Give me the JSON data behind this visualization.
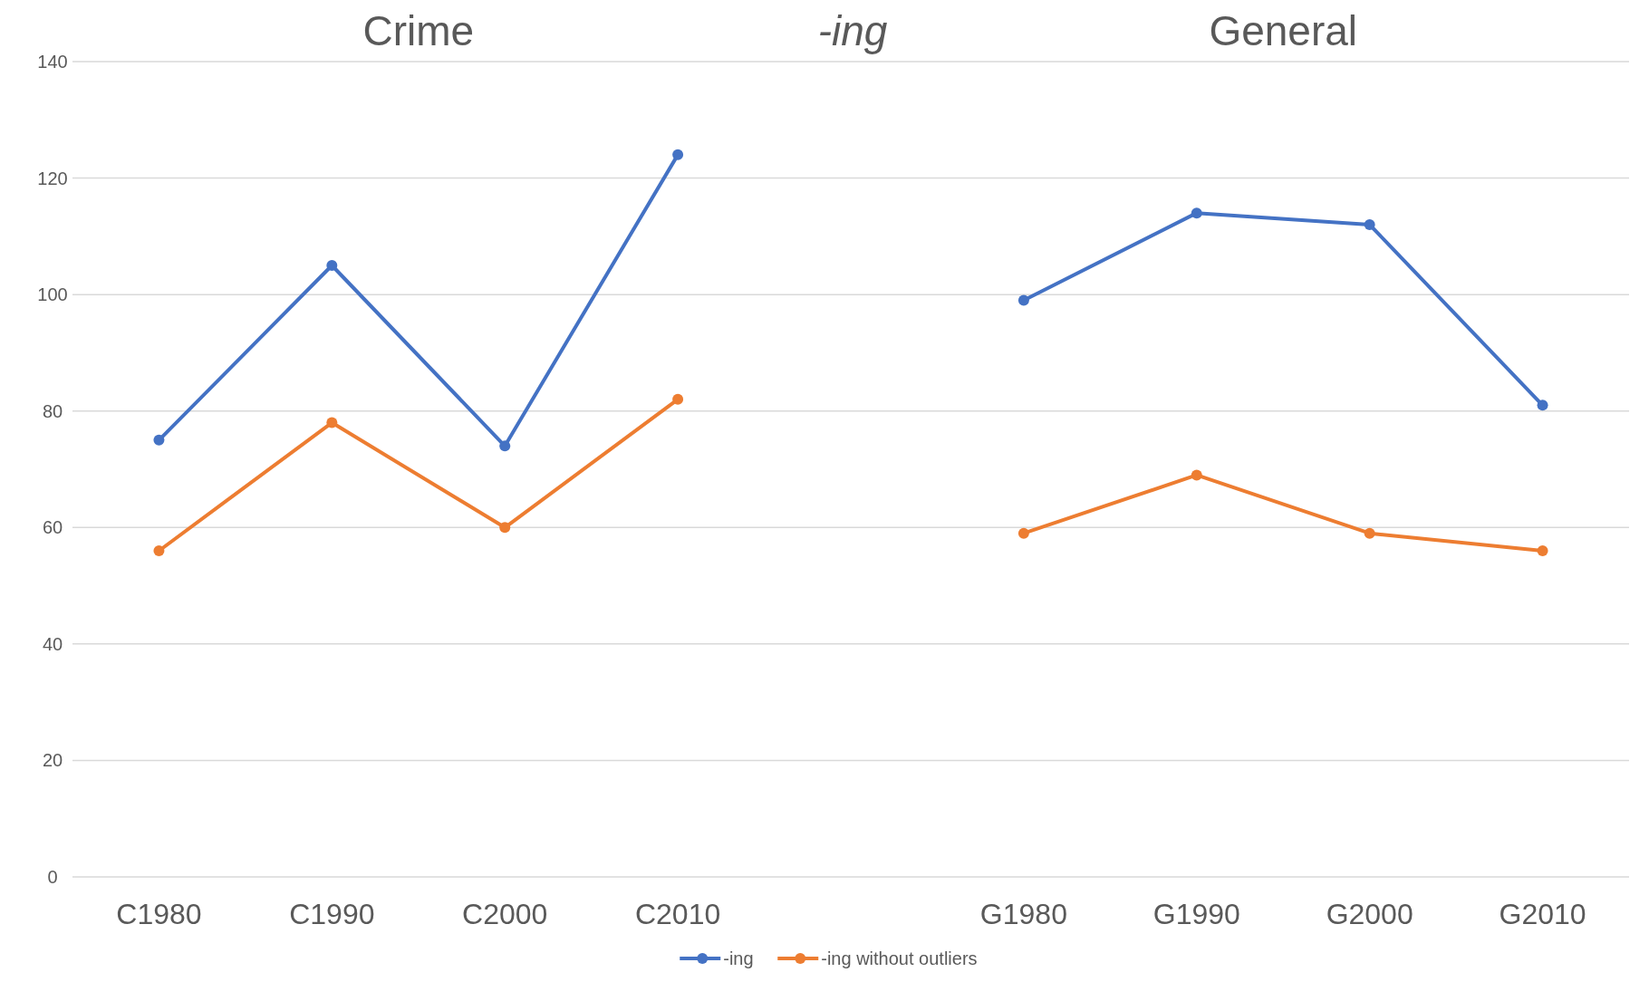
{
  "chart_data": {
    "type": "line",
    "title": "-ing",
    "annotations": [
      "Crime",
      "General"
    ],
    "categories": [
      "C1980",
      "C1990",
      "C2000",
      "C2010",
      null,
      "G1980",
      "G1990",
      "G2000",
      "G2010"
    ],
    "series": [
      {
        "name": "-ing",
        "color": "#4472c4",
        "values": [
          75,
          105,
          74,
          124,
          null,
          99,
          114,
          112,
          81
        ]
      },
      {
        "name": "-ing without outliers",
        "color": "#ed7d31",
        "values": [
          56,
          78,
          60,
          82,
          null,
          59,
          69,
          59,
          56
        ]
      }
    ],
    "ylim": [
      0,
      140
    ],
    "yticks": [
      0,
      20,
      40,
      60,
      80,
      100,
      120,
      140
    ],
    "grid": "y",
    "legend": "bottom",
    "marker": "circle",
    "line_style": "solid"
  }
}
